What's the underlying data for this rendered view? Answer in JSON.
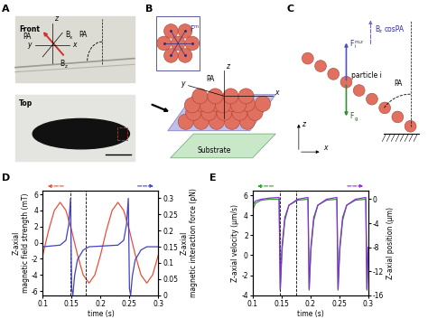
{
  "panel_labels": [
    "A",
    "B",
    "C",
    "D",
    "E"
  ],
  "diagrams": {
    "A": {
      "front": "Front",
      "top": "Top",
      "pa_labels": [
        "PA",
        "PA"
      ],
      "axes": [
        "z",
        "y",
        "x"
      ],
      "field": [
        {
          "text": "B",
          "sub": "x"
        },
        {
          "text": "B",
          "sub": "z"
        }
      ]
    },
    "B": {
      "inset_force": {
        "text": "F",
        "sup": "m"
      },
      "pa": "PA",
      "axes": [
        "z",
        "y",
        "x"
      ],
      "substrate": "Substrate"
    },
    "C": {
      "magnetic_force": {
        "text": "F",
        "sub": "i",
        "sup": "m,z"
      },
      "gravity": {
        "text": "F",
        "sub": "g"
      },
      "field_component": {
        "text": "B",
        "sub": "z",
        "after": "cosPA"
      },
      "particle": "particle i",
      "pa": "PA",
      "axes": [
        "z",
        "x"
      ]
    }
  },
  "chart_data": [
    {
      "type": "line",
      "xlabel": "time (s)",
      "ylabel": "Z-axial\nmagnetic field strength (mT)",
      "y2label": "Z-axial\nmagnetic interaction force (pN)",
      "xlim": [
        0.1,
        0.3
      ],
      "xticks": [
        0.1,
        0.15,
        0.2,
        0.25,
        0.3
      ],
      "ylim": [
        -6.5,
        6.5
      ],
      "yticks": [
        -6,
        -4,
        -2,
        0,
        2,
        4,
        6
      ],
      "y2lim": [
        0,
        0.325
      ],
      "y2ticks": [
        0,
        0.05,
        0.1,
        0.15,
        0.2,
        0.25,
        0.3
      ],
      "vlines": [
        0.148,
        0.175
      ],
      "series": [
        {
          "color": "#e8503a",
          "x": [
            0.1,
            0.11,
            0.12,
            0.13,
            0.14,
            0.15,
            0.16,
            0.17,
            0.18,
            0.19,
            0.2,
            0.21,
            0.22,
            0.23,
            0.24,
            0.25,
            0.26,
            0.27,
            0.28,
            0.29,
            0.3
          ],
          "values": [
            -1.5,
            1.5,
            4.0,
            5.0,
            4.0,
            1.5,
            -1.5,
            -4.0,
            -5.0,
            -4.0,
            -1.5,
            1.5,
            4.0,
            5.0,
            4.0,
            1.5,
            -1.5,
            -4.0,
            -5.0,
            -4.0,
            -1.5
          ]
        },
        {
          "color": "#4040c8",
          "axis": "y2",
          "x": [
            0.1,
            0.13,
            0.14,
            0.145,
            0.148,
            0.15,
            0.152,
            0.155,
            0.16,
            0.17,
            0.18,
            0.23,
            0.24,
            0.245,
            0.248,
            0.25,
            0.252,
            0.255,
            0.26,
            0.27,
            0.28,
            0.3
          ],
          "values": [
            0.15,
            0.155,
            0.17,
            0.22,
            0.3,
            0.02,
            0.0,
            0.06,
            0.11,
            0.14,
            0.15,
            0.155,
            0.17,
            0.22,
            0.3,
            0.02,
            0.0,
            0.06,
            0.11,
            0.14,
            0.15,
            0.15
          ]
        }
      ]
    },
    {
      "type": "line",
      "xlabel": "time (s)",
      "ylabel": "Z-axial velocity (μm/s)",
      "y2label": "Z-axial position (μm)",
      "xlim": [
        0.1,
        0.3
      ],
      "xticks": [
        0.1,
        0.15,
        0.2,
        0.25,
        0.3
      ],
      "ylim": [
        -4,
        6.5
      ],
      "yticks": [
        -4,
        -2,
        0,
        2,
        4,
        6
      ],
      "y2lim": [
        -16,
        1.5
      ],
      "y2ticks": [
        0,
        -4,
        -8,
        -12,
        -16
      ],
      "vlines": [
        0.148,
        0.175
      ],
      "series": [
        {
          "color": "#2ca02c",
          "x": [
            0.1,
            0.105,
            0.115,
            0.13,
            0.146,
            0.148,
            0.151,
            0.156,
            0.163,
            0.178,
            0.196,
            0.198,
            0.201,
            0.206,
            0.213,
            0.228,
            0.246,
            0.248,
            0.251,
            0.256,
            0.263,
            0.278,
            0.296,
            0.298,
            0.3
          ],
          "values": [
            4.5,
            5.2,
            5.5,
            5.6,
            5.6,
            -3.5,
            0.5,
            3.5,
            5.0,
            5.5,
            5.6,
            -3.5,
            0.5,
            3.5,
            5.0,
            5.5,
            5.6,
            -3.5,
            0.5,
            3.5,
            5.0,
            5.5,
            5.6,
            -3.5,
            0.5
          ]
        },
        {
          "color": "#8a2be2",
          "axis": "y2",
          "x": [
            0.1,
            0.105,
            0.115,
            0.13,
            0.146,
            0.148,
            0.151,
            0.156,
            0.163,
            0.178,
            0.196,
            0.198,
            0.201,
            0.206,
            0.213,
            0.228,
            0.246,
            0.248,
            0.251,
            0.256,
            0.263,
            0.278,
            0.296,
            0.298,
            0.3
          ],
          "values": [
            -1,
            -0.3,
            0,
            0.2,
            0.3,
            -15,
            -8,
            -3,
            -1,
            0,
            0.3,
            -15,
            -8,
            -3,
            -1,
            0,
            0.3,
            -15,
            -8,
            -3,
            -1,
            0,
            0.3,
            -15,
            -8
          ]
        }
      ]
    }
  ]
}
